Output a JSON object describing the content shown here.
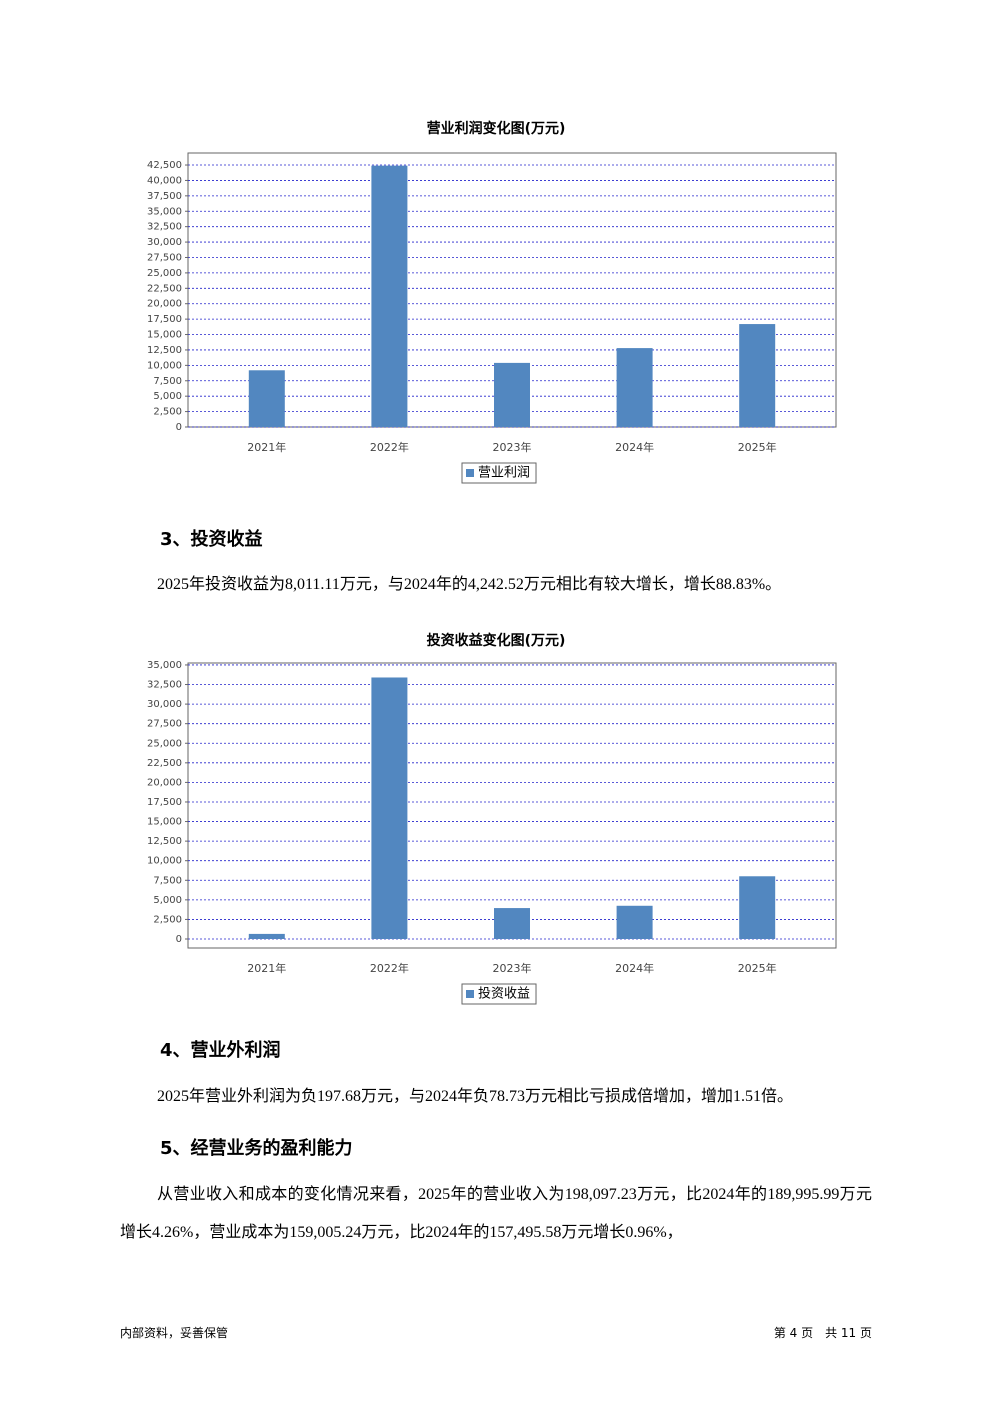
{
  "chart_data": [
    {
      "type": "bar",
      "title": "营业利润变化图(万元)",
      "categories": [
        "2021年",
        "2022年",
        "2023年",
        "2024年",
        "2025年"
      ],
      "series": [
        {
          "name": "营业利润",
          "color": "#5287c0",
          "values": [
            9200,
            42400,
            10400,
            12800,
            16700
          ]
        }
      ],
      "ylim": [
        0,
        44450
      ],
      "yticks": [
        0,
        {
          "value": 2500,
          "label": "2,500"
        },
        {
          "value": 5000,
          "label": "5,000"
        },
        {
          "value": 7500,
          "label": "7,500"
        },
        {
          "value": 10000,
          "label": "10,000"
        },
        {
          "value": 12500,
          "label": "12,500"
        },
        {
          "value": 15000,
          "label": "15,000"
        },
        {
          "value": 17500,
          "label": "17,500"
        },
        {
          "value": 20000,
          "label": "20,000"
        },
        {
          "value": 22500,
          "label": "22,500"
        },
        {
          "value": 25000,
          "label": "25,000"
        },
        {
          "value": 27500,
          "label": "27,500"
        },
        {
          "value": 30000,
          "label": "30,000"
        },
        {
          "value": 32500,
          "label": "32,500"
        },
        {
          "value": 35000,
          "label": "35,000"
        },
        {
          "value": 37500,
          "label": "37,500"
        },
        {
          "value": 40000,
          "label": "40,000"
        },
        {
          "value": 42500,
          "label": "42,500"
        }
      ],
      "grid": true,
      "legend": "bottom"
    },
    {
      "type": "bar",
      "title": "投资收益变化图(万元)",
      "categories": [
        "2021年",
        "2022年",
        "2023年",
        "2024年",
        "2025年"
      ],
      "series": [
        {
          "name": "投资收益",
          "color": "#5287c0",
          "values": [
            650,
            33400,
            3950,
            4242.52,
            8011.11
          ]
        }
      ],
      "ylim": [
        -1150,
        35250
      ],
      "yticks": [
        0,
        {
          "value": 2500,
          "label": "2,500"
        },
        {
          "value": 5000,
          "label": "5,000"
        },
        {
          "value": 7500,
          "label": "7,500"
        },
        {
          "value": 10000,
          "label": "10,000"
        },
        {
          "value": 12500,
          "label": "12,500"
        },
        {
          "value": 15000,
          "label": "15,000"
        },
        {
          "value": 17500,
          "label": "17,500"
        },
        {
          "value": 20000,
          "label": "20,000"
        },
        {
          "value": 22500,
          "label": "22,500"
        },
        {
          "value": 25000,
          "label": "25,000"
        },
        {
          "value": 27500,
          "label": "27,500"
        },
        {
          "value": 30000,
          "label": "30,000"
        },
        {
          "value": 32500,
          "label": "32,500"
        },
        {
          "value": 35000,
          "label": "35,000"
        }
      ],
      "grid": true,
      "legend": "bottom"
    }
  ],
  "blocks": {
    "h3": "3、投资收益",
    "p3": "2025年投资收益为8,011.11万元，与2024年的4,242.52万元相比有较大增长，增长88.83%。",
    "h4": "4、营业外利润",
    "p4": "2025年营业外利润为负197.68万元，与2024年负78.73万元相比亏损成倍增加，增加1.51倍。",
    "h5": "5、经营业务的盈利能力",
    "p5": "从营业收入和成本的变化情况来看，2025年的营业收入为198,097.23万元，比2024年的189,995.99万元增长4.26%，营业成本为159,005.24万元，比2024年的157,495.58万元增长0.96%，"
  },
  "footer": {
    "left": "内部资料，妥善保管",
    "right": "第 4 页　共 11 页"
  }
}
